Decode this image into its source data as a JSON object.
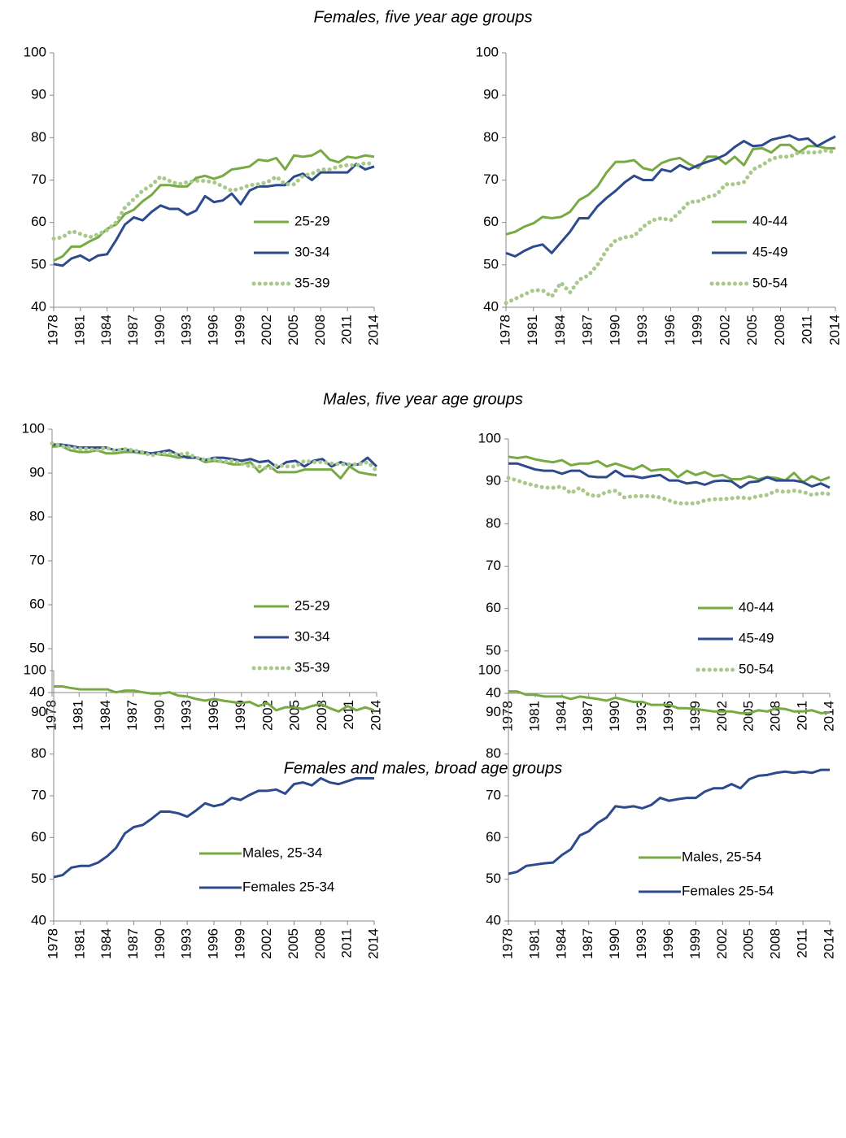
{
  "headings": [
    "Females, five year age groups",
    "Males, five year age groups",
    "Females and males, broad age groups"
  ],
  "chart_data": [
    {
      "type": "line",
      "x": [
        1978,
        1979,
        1980,
        1981,
        1982,
        1983,
        1984,
        1985,
        1986,
        1987,
        1988,
        1989,
        1990,
        1991,
        1992,
        1993,
        1994,
        1995,
        1996,
        1997,
        1998,
        1999,
        2000,
        2001,
        2002,
        2003,
        2004,
        2005,
        2006,
        2007,
        2008,
        2009,
        2010,
        2011,
        2012,
        2013,
        2014
      ],
      "xlim": [
        1978,
        2014
      ],
      "xticks": [
        1978,
        1981,
        1984,
        1987,
        1990,
        1993,
        1996,
        1999,
        2002,
        2005,
        2008,
        2011,
        2014
      ],
      "ylim": [
        40,
        100
      ],
      "yticks": [
        40,
        50,
        60,
        70,
        80,
        90,
        100
      ],
      "series": [
        {
          "name": "25-29",
          "color": "#77aa43",
          "style": "solid",
          "values": [
            51,
            52,
            54.3,
            54.3,
            55.5,
            56.5,
            58.5,
            59.5,
            62,
            63,
            65,
            66.5,
            68.8,
            68.8,
            68.5,
            68.5,
            70.5,
            71,
            70.3,
            71,
            72.5,
            72.8,
            73.2,
            74.8,
            74.5,
            75.2,
            72.5,
            75.8,
            75.5,
            75.8,
            77,
            74.8,
            74.2,
            75.5,
            75.2,
            75.8,
            75.5
          ]
        },
        {
          "name": "30-34",
          "color": "#2c4a8c",
          "style": "solid",
          "values": [
            50.2,
            49.8,
            51.5,
            52.2,
            51,
            52.2,
            52.5,
            55.8,
            59.5,
            61.2,
            60.5,
            62.5,
            64,
            63.2,
            63.2,
            61.8,
            62.8,
            66.2,
            64.8,
            65.2,
            66.8,
            64.3,
            67.5,
            68.5,
            68.5,
            68.8,
            68.8,
            70.8,
            71.5,
            70,
            71.8,
            71.8,
            71.8,
            71.8,
            73.8,
            72.5,
            73.2
          ]
        },
        {
          "name": "35-39",
          "color": "#a8c98b",
          "style": "dotted",
          "values": [
            56.2,
            56.5,
            58,
            57.3,
            56.5,
            57.2,
            58.2,
            60,
            63.5,
            65.5,
            67.5,
            68.8,
            70.8,
            69.8,
            69,
            69.5,
            69.8,
            69.8,
            69.5,
            68.5,
            67.5,
            68,
            68.8,
            69,
            69.5,
            70.8,
            69,
            69,
            71,
            71.5,
            72.5,
            72.5,
            73.2,
            73.5,
            73.5,
            74,
            73.8
          ]
        }
      ]
    },
    {
      "type": "line",
      "x": [
        1978,
        1979,
        1980,
        1981,
        1982,
        1983,
        1984,
        1985,
        1986,
        1987,
        1988,
        1989,
        1990,
        1991,
        1992,
        1993,
        1994,
        1995,
        1996,
        1997,
        1998,
        1999,
        2000,
        2001,
        2002,
        2003,
        2004,
        2005,
        2006,
        2007,
        2008,
        2009,
        2010,
        2011,
        2012,
        2013,
        2014
      ],
      "xlim": [
        1978,
        2014
      ],
      "xticks": [
        1978,
        1981,
        1984,
        1987,
        1990,
        1993,
        1996,
        1999,
        2002,
        2005,
        2008,
        2011,
        2014
      ],
      "ylim": [
        40,
        100
      ],
      "yticks": [
        40,
        50,
        60,
        70,
        80,
        90,
        100
      ],
      "series": [
        {
          "name": "40-44",
          "color": "#77aa43",
          "style": "solid",
          "values": [
            57.2,
            57.8,
            59,
            59.8,
            61.3,
            61,
            61.3,
            62.5,
            65.3,
            66.5,
            68.5,
            71.8,
            74.3,
            74.3,
            74.7,
            72.8,
            72.3,
            74,
            74.8,
            75.2,
            73.8,
            72.8,
            75.5,
            75.5,
            73.8,
            75.5,
            73.5,
            77.3,
            77.5,
            76.5,
            78.3,
            78.3,
            76.5,
            78,
            78,
            77.5,
            77.5
          ]
        },
        {
          "name": "45-49",
          "color": "#2c4a8c",
          "style": "solid",
          "values": [
            52.8,
            52,
            53.3,
            54.3,
            54.8,
            52.8,
            55.3,
            57.8,
            61,
            61,
            63.8,
            65.8,
            67.5,
            69.5,
            71,
            70,
            70,
            72.5,
            72,
            73.5,
            72.5,
            73.5,
            74.3,
            75,
            76,
            77.8,
            79.2,
            78,
            78.2,
            79.5,
            80,
            80.5,
            79.5,
            79.8,
            78,
            79.2,
            80.3
          ]
        },
        {
          "name": "50-54",
          "color": "#a8c98b",
          "style": "dotted",
          "values": [
            41,
            42,
            43,
            44,
            44,
            42.5,
            45.8,
            43.5,
            46.5,
            47.5,
            50,
            53.5,
            55.8,
            56.5,
            56.8,
            59,
            60.5,
            61,
            60.5,
            62.5,
            64.8,
            65,
            66,
            66.5,
            69,
            69,
            69.5,
            72.5,
            73.5,
            75,
            75.5,
            75.5,
            76.5,
            76.5,
            76.5,
            77,
            76.5
          ]
        }
      ]
    },
    {
      "type": "line",
      "x": [
        1978,
        1979,
        1980,
        1981,
        1982,
        1983,
        1984,
        1985,
        1986,
        1987,
        1988,
        1989,
        1990,
        1991,
        1992,
        1993,
        1994,
        1995,
        1996,
        1997,
        1998,
        1999,
        2000,
        2001,
        2002,
        2003,
        2004,
        2005,
        2006,
        2007,
        2008,
        2009,
        2010,
        2011,
        2012,
        2013,
        2014
      ],
      "xlim": [
        1978,
        2014
      ],
      "xticks": [
        1978,
        1981,
        1984,
        1987,
        1990,
        1993,
        1996,
        1999,
        2002,
        2005,
        2008,
        2011,
        2014
      ],
      "ylim": [
        40,
        100
      ],
      "yticks": [
        40,
        50,
        60,
        70,
        80,
        90,
        100
      ],
      "series": [
        {
          "name": "25-29",
          "color": "#77aa43",
          "style": "solid",
          "values": [
            96,
            96.2,
            95.2,
            94.8,
            94.8,
            95.2,
            94.5,
            94.5,
            94.8,
            94.8,
            94.5,
            94.5,
            94.2,
            94,
            93.5,
            93.8,
            93.5,
            92.5,
            92.8,
            92.5,
            92,
            92,
            92.5,
            90.2,
            91.8,
            90.2,
            90.2,
            90.2,
            90.8,
            90.8,
            90.8,
            90.8,
            88.8,
            91.5,
            90.2,
            89.8,
            89.5
          ]
        },
        {
          "name": "30-34",
          "color": "#2c4a8c",
          "style": "solid",
          "values": [
            96.5,
            96.5,
            96.2,
            95.8,
            95.8,
            95.8,
            95.8,
            95.2,
            95.5,
            95,
            94.8,
            94.5,
            94.8,
            95.2,
            94.2,
            93.5,
            93.5,
            93,
            93.5,
            93.5,
            93.2,
            92.8,
            93.2,
            92.5,
            92.8,
            91.2,
            92.5,
            92.8,
            91.5,
            92.8,
            93.2,
            91.5,
            92.5,
            91.8,
            92,
            93.5,
            91.5
          ]
        },
        {
          "name": "35-39",
          "color": "#a8c98b",
          "style": "dotted",
          "values": [
            96.8,
            96.2,
            95.8,
            95.5,
            95.5,
            95.2,
            95.8,
            95,
            95.5,
            95.2,
            94.8,
            94,
            94.5,
            94.5,
            94.2,
            94.5,
            93.5,
            93,
            93.2,
            92.5,
            92.8,
            92.2,
            91.5,
            91.5,
            91,
            91.8,
            91.5,
            91.5,
            92.8,
            92.5,
            92.5,
            92.2,
            92,
            92,
            92,
            92.5,
            90.5
          ]
        }
      ]
    },
    {
      "type": "line",
      "x": [
        1978,
        1979,
        1980,
        1981,
        1982,
        1983,
        1984,
        1985,
        1986,
        1987,
        1988,
        1989,
        1990,
        1991,
        1992,
        1993,
        1994,
        1995,
        1996,
        1997,
        1998,
        1999,
        2000,
        2001,
        2002,
        2003,
        2004,
        2005,
        2006,
        2007,
        2008,
        2009,
        2010,
        2011,
        2012,
        2013,
        2014
      ],
      "xlim": [
        1978,
        2014
      ],
      "xticks": [
        1978,
        1981,
        1984,
        1987,
        1990,
        1993,
        1996,
        1999,
        2002,
        2005,
        2008,
        2011,
        2014
      ],
      "ylim": [
        40,
        100
      ],
      "yticks": [
        40,
        50,
        60,
        70,
        80,
        90,
        100
      ],
      "series": [
        {
          "name": "40-44",
          "color": "#77aa43",
          "style": "solid",
          "values": [
            95.8,
            95.5,
            95.8,
            95.2,
            94.8,
            94.5,
            95,
            93.8,
            94.2,
            94.2,
            94.8,
            93.5,
            94.2,
            93.5,
            92.8,
            93.8,
            92.5,
            92.8,
            92.8,
            91,
            92.5,
            91.5,
            92.2,
            91.2,
            91.5,
            90.5,
            90.5,
            91.2,
            90.5,
            91,
            90.8,
            90.2,
            92,
            89.8,
            91.2,
            90.2,
            91
          ]
        },
        {
          "name": "45-49",
          "color": "#2c4a8c",
          "style": "solid",
          "values": [
            94.2,
            94.2,
            93.5,
            92.8,
            92.5,
            92.5,
            91.8,
            92.5,
            92.5,
            91.2,
            91,
            91,
            92.5,
            91.2,
            91.2,
            90.8,
            91.2,
            91.5,
            90.2,
            90.2,
            89.5,
            89.8,
            89.2,
            90,
            90.2,
            90,
            88.5,
            89.8,
            90,
            91,
            90.2,
            90.2,
            90.2,
            89.8,
            88.8,
            89.5,
            88.5
          ]
        },
        {
          "name": "50-54",
          "color": "#a8c98b",
          "style": "dotted",
          "values": [
            90.8,
            90.2,
            89.5,
            89,
            88.5,
            88.5,
            88.8,
            87.2,
            88.5,
            86.8,
            86.5,
            87.5,
            87.8,
            86.2,
            86.5,
            86.5,
            86.5,
            86.2,
            85.5,
            84.8,
            84.8,
            84.8,
            85.5,
            85.8,
            85.8,
            86,
            86.2,
            86,
            86.5,
            86.8,
            87.8,
            87.5,
            87.8,
            87.5,
            86.8,
            87.2,
            87
          ]
        }
      ]
    },
    {
      "type": "line",
      "x": [
        1978,
        1979,
        1980,
        1981,
        1982,
        1983,
        1984,
        1985,
        1986,
        1987,
        1988,
        1989,
        1990,
        1991,
        1992,
        1993,
        1994,
        1995,
        1996,
        1997,
        1998,
        1999,
        2000,
        2001,
        2002,
        2003,
        2004,
        2005,
        2006,
        2007,
        2008,
        2009,
        2010,
        2011,
        2012,
        2013,
        2014
      ],
      "xlim": [
        1978,
        2014
      ],
      "xticks": [
        1978,
        1981,
        1984,
        1987,
        1990,
        1993,
        1996,
        1999,
        2002,
        2005,
        2008,
        2011,
        2014
      ],
      "ylim": [
        40,
        100
      ],
      "yticks": [
        40,
        50,
        60,
        70,
        80,
        90,
        100
      ],
      "series": [
        {
          "name": "Males, 25-34",
          "color": "#77aa43",
          "style": "solid",
          "values": [
            96.2,
            96.2,
            95.8,
            95.5,
            95.5,
            95.5,
            95.5,
            94.8,
            95.2,
            95.2,
            94.8,
            94.5,
            94.5,
            94.8,
            94,
            93.8,
            93.2,
            92.8,
            93.2,
            92.8,
            92.5,
            92.2,
            92.5,
            91.5,
            92.2,
            90.5,
            91.2,
            91.2,
            90.8,
            91.5,
            92,
            91,
            90.2,
            91.5,
            90.5,
            91.2,
            90.5
          ]
        },
        {
          "name": "Females 25-34",
          "color": "#2c4a8c",
          "style": "solid",
          "values": [
            50.5,
            51,
            52.8,
            53.2,
            53.2,
            54,
            55.5,
            57.5,
            61,
            62.5,
            63,
            64.5,
            66.2,
            66.2,
            65.8,
            65,
            66.5,
            68.2,
            67.5,
            68,
            69.5,
            69,
            70.2,
            71.2,
            71.2,
            71.5,
            70.5,
            72.8,
            73.2,
            72.5,
            74.2,
            73.2,
            72.8,
            73.5,
            74.2,
            74.2,
            74.2
          ]
        }
      ]
    },
    {
      "type": "line",
      "x": [
        1978,
        1979,
        1980,
        1981,
        1982,
        1983,
        1984,
        1985,
        1986,
        1987,
        1988,
        1989,
        1990,
        1991,
        1992,
        1993,
        1994,
        1995,
        1996,
        1997,
        1998,
        1999,
        2000,
        2001,
        2002,
        2003,
        2004,
        2005,
        2006,
        2007,
        2008,
        2009,
        2010,
        2011,
        2012,
        2013,
        2014
      ],
      "xlim": [
        1978,
        2014
      ],
      "xticks": [
        1978,
        1981,
        1984,
        1987,
        1990,
        1993,
        1996,
        1999,
        2002,
        2005,
        2008,
        2011,
        2014
      ],
      "ylim": [
        40,
        100
      ],
      "yticks": [
        40,
        50,
        60,
        70,
        80,
        90,
        100
      ],
      "series": [
        {
          "name": "Males, 25-54",
          "color": "#77aa43",
          "style": "solid",
          "values": [
            95,
            95,
            94.2,
            94.2,
            93.8,
            93.8,
            93.8,
            93.2,
            93.8,
            93.5,
            93.2,
            92.8,
            93.5,
            93,
            92.5,
            92.5,
            91.8,
            91.8,
            91.8,
            91,
            91,
            90.8,
            90.5,
            90.2,
            90.2,
            90.2,
            89.8,
            89.8,
            90.5,
            90.2,
            91,
            90.8,
            90.2,
            90.2,
            90.5,
            89.8,
            90
          ]
        },
        {
          "name": "Females 25-54",
          "color": "#2c4a8c",
          "style": "solid",
          "values": [
            51.3,
            51.8,
            53.2,
            53.5,
            53.8,
            54,
            55.8,
            57.2,
            60.5,
            61.5,
            63.5,
            64.8,
            67.5,
            67.2,
            67.5,
            67,
            67.8,
            69.5,
            68.8,
            69.2,
            69.5,
            69.5,
            71,
            71.8,
            71.8,
            72.8,
            71.8,
            74,
            74.8,
            75,
            75.5,
            75.8,
            75.5,
            75.8,
            75.5,
            76.2,
            76.2
          ]
        }
      ]
    }
  ]
}
